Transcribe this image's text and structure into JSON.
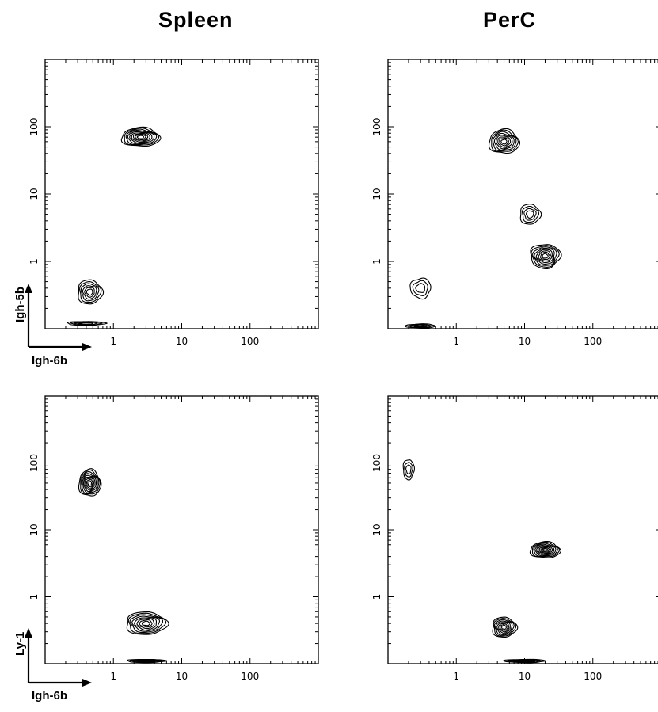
{
  "columns": [
    "Spleen",
    "PerC"
  ],
  "axis_marker": {
    "top_row": {
      "x": "Igh-6b",
      "y": "Igh-5b"
    },
    "bottom_row": {
      "x": "Igh-6b",
      "y": "Ly-1"
    }
  },
  "chart_data": [
    {
      "type": "contour",
      "panel": "top-left",
      "column": "Spleen",
      "xlabel": "Igh-6b",
      "ylabel": "Igh-5b",
      "xscale": "log",
      "yscale": "log",
      "xlim": [
        0.1,
        1000
      ],
      "ylim": [
        0.1,
        1000
      ],
      "xticks": [
        "1",
        "10",
        "100"
      ],
      "yticks": [
        "1",
        "10",
        "100"
      ],
      "populations": [
        {
          "center": [
            2.5,
            70
          ],
          "spread": [
            0.28,
            0.14
          ],
          "levels": 9
        },
        {
          "center": [
            0.45,
            0.35
          ],
          "spread": [
            0.18,
            0.18
          ],
          "levels": 6
        },
        {
          "center": [
            0.4,
            0.12
          ],
          "spread": [
            0.28,
            0.03
          ],
          "levels": 4
        }
      ]
    },
    {
      "type": "contour",
      "panel": "top-right",
      "column": "PerC",
      "xlabel": "Igh-6b",
      "ylabel": "Igh-5b",
      "xscale": "log",
      "yscale": "log",
      "xlim": [
        0.1,
        1000
      ],
      "ylim": [
        0.1,
        1000
      ],
      "xticks": [
        "1",
        "10",
        "100"
      ],
      "yticks": [
        "1",
        "10",
        "100"
      ],
      "populations": [
        {
          "center": [
            5,
            60
          ],
          "spread": [
            0.22,
            0.18
          ],
          "levels": 8
        },
        {
          "center": [
            12,
            5
          ],
          "spread": [
            0.15,
            0.15
          ],
          "levels": 4
        },
        {
          "center": [
            20,
            1.2
          ],
          "spread": [
            0.22,
            0.18
          ],
          "levels": 8
        },
        {
          "center": [
            0.3,
            0.4
          ],
          "spread": [
            0.15,
            0.15
          ],
          "levels": 3
        },
        {
          "center": [
            0.3,
            0.11
          ],
          "spread": [
            0.22,
            0.03
          ],
          "levels": 3
        }
      ]
    },
    {
      "type": "contour",
      "panel": "bottom-left",
      "column": "Spleen",
      "xlabel": "Igh-6b",
      "ylabel": "Ly-1",
      "xscale": "log",
      "yscale": "log",
      "xlim": [
        0.1,
        1000
      ],
      "ylim": [
        0.1,
        1000
      ],
      "xticks": [
        "1",
        "10",
        "100"
      ],
      "yticks": [
        "1",
        "10",
        "100"
      ],
      "populations": [
        {
          "center": [
            0.45,
            50
          ],
          "spread": [
            0.16,
            0.2
          ],
          "levels": 9
        },
        {
          "center": [
            3,
            0.4
          ],
          "spread": [
            0.3,
            0.17
          ],
          "levels": 8
        },
        {
          "center": [
            3,
            0.11
          ],
          "spread": [
            0.28,
            0.025
          ],
          "levels": 4
        }
      ]
    },
    {
      "type": "contour",
      "panel": "bottom-right",
      "column": "PerC",
      "xlabel": "Igh-6b",
      "ylabel": "Ly-1",
      "xscale": "log",
      "yscale": "log",
      "xlim": [
        0.1,
        1000
      ],
      "ylim": [
        0.1,
        1000
      ],
      "xticks": [
        "1",
        "10",
        "100"
      ],
      "yticks": [
        "1",
        "10",
        "100"
      ],
      "populations": [
        {
          "center": [
            20,
            5
          ],
          "spread": [
            0.22,
            0.12
          ],
          "levels": 9
        },
        {
          "center": [
            5,
            0.35
          ],
          "spread": [
            0.18,
            0.15
          ],
          "levels": 8
        },
        {
          "center": [
            0.2,
            80
          ],
          "spread": [
            0.08,
            0.15
          ],
          "levels": 3
        },
        {
          "center": [
            10,
            0.11
          ],
          "spread": [
            0.3,
            0.025
          ],
          "levels": 4
        }
      ]
    }
  ]
}
